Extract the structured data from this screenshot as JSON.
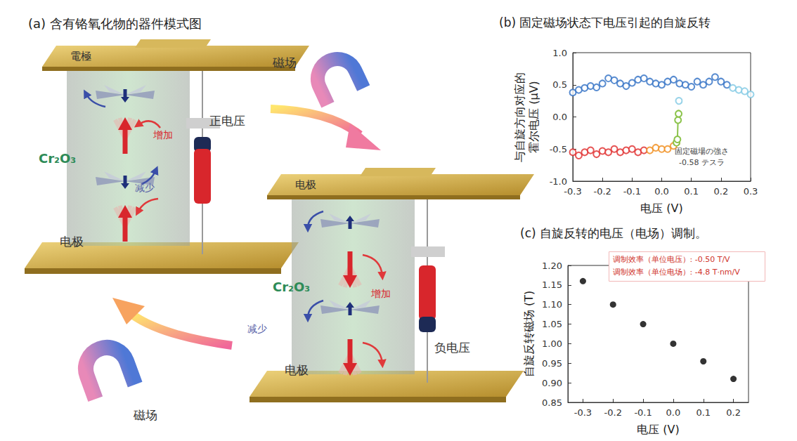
{
  "panel_a": {
    "title": "(a) 含有铬氧化物的器件模式图",
    "magnet_top": "磁场",
    "magnet_bottom": "磁场",
    "device_positive": {
      "top_electrode": "電極",
      "material": "Cr₂O₃",
      "increase": "增加",
      "decrease": "减少",
      "bottom_electrode": "电极",
      "voltage": "正电压"
    },
    "device_negative": {
      "top_electrode": "电极",
      "material": "Cr₂O₃",
      "increase": "增加",
      "decrease": "减少",
      "bottom_electrode": "电极",
      "voltage": "负电压"
    }
  },
  "chart_data": [
    {
      "type": "scatter",
      "title": "(b) 固定磁场状态下电压引起的自旋反转",
      "x_label": "电压 (V)",
      "y_label": "与自旋方向对应的\n霍尔电压 (μV)",
      "annotation": [
        "固定磁場の強さ",
        "-0.58 テスラ"
      ],
      "marker": "circle_open",
      "grid": false,
      "xlim": [
        -0.3,
        0.3
      ],
      "xticks": [
        -0.3,
        -0.2,
        -0.1,
        {
          "value": 0,
          "label": "0.0"
        },
        0.1,
        0.2,
        0.3
      ],
      "ylim": [
        -1.0,
        1.0
      ],
      "yticks": [
        {
          "value": -1.0,
          "label": "-1.0"
        },
        -0.5,
        {
          "value": 0,
          "label": "0.0"
        },
        0.5,
        {
          "value": 1.0,
          "label": "1.0"
        }
      ],
      "series": [
        {
          "color": "#2f6fc4",
          "type": "scatter",
          "x": [
            -0.3,
            -0.28,
            -0.26,
            -0.24,
            -0.22,
            -0.2,
            -0.18,
            -0.16,
            -0.14,
            -0.12,
            -0.1,
            -0.08,
            -0.06,
            -0.04,
            -0.02,
            0.0,
            0.02,
            0.04,
            0.06,
            0.08,
            0.1,
            0.12,
            0.14,
            0.16,
            0.18,
            0.2,
            0.22
          ],
          "values": [
            0.38,
            0.42,
            0.45,
            0.48,
            0.46,
            0.52,
            0.6,
            0.57,
            0.52,
            0.48,
            0.53,
            0.58,
            0.6,
            0.55,
            0.52,
            0.5,
            0.55,
            0.58,
            0.52,
            0.5,
            0.47,
            0.55,
            0.5,
            0.55,
            0.62,
            0.55,
            0.5
          ]
        },
        {
          "color": "#7ec8e3",
          "type": "scatter",
          "x": [
            0.24,
            0.26,
            0.28,
            0.3,
            0.058
          ],
          "values": [
            0.45,
            0.42,
            0.4,
            0.35,
            0.25
          ]
        },
        {
          "color": "#e02a2a",
          "type": "scatter",
          "x": [
            -0.3,
            -0.28,
            -0.26,
            -0.24,
            -0.22,
            -0.2,
            -0.18,
            -0.16,
            -0.14,
            -0.12,
            -0.1,
            -0.08,
            -0.06
          ],
          "values": [
            -0.55,
            -0.6,
            -0.55,
            -0.52,
            -0.58,
            -0.53,
            -0.55,
            -0.5,
            -0.55,
            -0.52,
            -0.5,
            -0.55,
            -0.52
          ]
        },
        {
          "color": "#f08c1a",
          "type": "scatter",
          "x": [
            -0.04,
            -0.02,
            0.0,
            0.02,
            0.04,
            0.05
          ],
          "values": [
            -0.52,
            -0.48,
            -0.5,
            -0.5,
            -0.45,
            -0.4
          ]
        },
        {
          "color": "#8bc34a",
          "type": "line",
          "x": [
            0.05,
            0.053,
            0.055,
            0.057
          ],
          "values": [
            -0.4,
            -0.35,
            -0.05,
            0.05
          ]
        }
      ]
    },
    {
      "type": "scatter",
      "title": "(c) 自旋反转的电压（电场）调制。",
      "x_label": "电压 (V)",
      "y_label": "自旋反转磁场 (T)",
      "annotation": [
        "调制效率（单位电压）: -0.50 T/V",
        "调制效率（单位电场）: -4.8 T·nm/V"
      ],
      "marker": "circle",
      "grid": false,
      "color": "#000000",
      "xlim": [
        -0.35,
        0.25
      ],
      "xticks": [
        -0.3,
        -0.2,
        -0.1,
        {
          "value": 0,
          "label": "0.0"
        },
        0.1,
        0.2
      ],
      "ylim": [
        0.85,
        1.2
      ],
      "yticks": [
        0.85,
        {
          "value": 0.9,
          "label": "0.90"
        },
        0.95,
        {
          "value": 1.0,
          "label": "1.00"
        },
        1.05,
        {
          "value": 1.1,
          "label": "1.10"
        },
        1.15,
        {
          "value": 1.2,
          "label": "1.20"
        }
      ],
      "x": [
        -0.3,
        -0.2,
        -0.1,
        0.0,
        0.1,
        0.2
      ],
      "values": [
        1.16,
        1.1,
        1.05,
        1.0,
        0.955,
        0.91
      ]
    }
  ]
}
